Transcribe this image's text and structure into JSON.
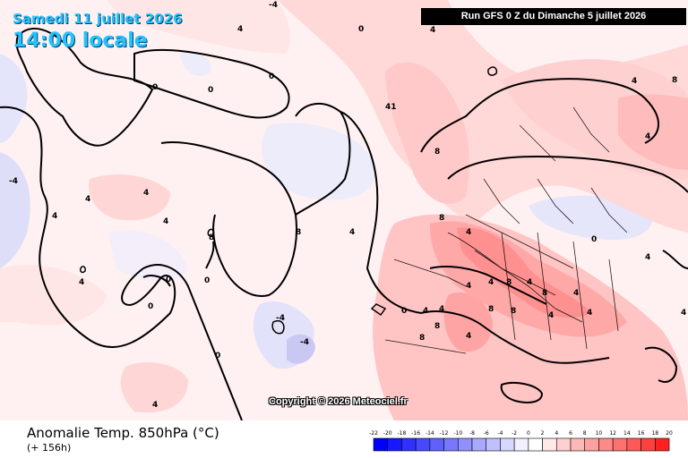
{
  "header": {
    "date": "Samedi 11 juillet 2026",
    "time": "14:00 locale",
    "run": "Run GFS 0 Z du Dimanche 5 juillet 2026"
  },
  "copyright": "Copyright © 2026 Meteociel.fr",
  "footer": {
    "title": "Anomalie Temp. 850hPa (°C)",
    "subtitle": "(+ 156h)"
  },
  "scale": {
    "labels": [
      "-22",
      "-20",
      "-18",
      "-16",
      "-14",
      "-12",
      "-10",
      "-8",
      "-6",
      "-4",
      "-2",
      "0",
      "2",
      "4",
      "6",
      "8",
      "10",
      "12",
      "14",
      "16",
      "18",
      "20"
    ],
    "colors": [
      "#0000ff",
      "#1818ff",
      "#3030ff",
      "#4848ff",
      "#6060ff",
      "#7878ff",
      "#9090ff",
      "#a8a8ff",
      "#c0c0ff",
      "#d8d8ff",
      "#f0f0ff",
      "#ffffff",
      "#ffe8e8",
      "#ffd0d0",
      "#ffb8b8",
      "#ffa0a0",
      "#ff8888",
      "#ff7070",
      "#ff5858",
      "#ff4040",
      "#ff2020"
    ]
  },
  "contour_labels": [
    "4",
    "0",
    "-4",
    "4",
    "41",
    "0",
    "8",
    "4",
    "4",
    "0",
    "8",
    "4",
    "0",
    "-4",
    "4",
    "0",
    "8",
    "8",
    "4",
    "4",
    "4",
    "0",
    "0",
    "-4",
    "4",
    "8",
    "4",
    "4",
    "-4",
    "4",
    "0",
    "4",
    "4",
    "8",
    "4",
    "8",
    "8",
    "4",
    "4",
    "4",
    "0",
    "4",
    "0",
    "4",
    "8",
    "8",
    "8",
    "4",
    "4"
  ],
  "colors": {
    "header_text": "#22c4ff",
    "coastline": "#000000",
    "warm_light": "#ffe1e1",
    "warm_mid": "#ffc6c6",
    "warm_strong": "#ff9c9c",
    "cool_light": "#e2e2fb"
  }
}
